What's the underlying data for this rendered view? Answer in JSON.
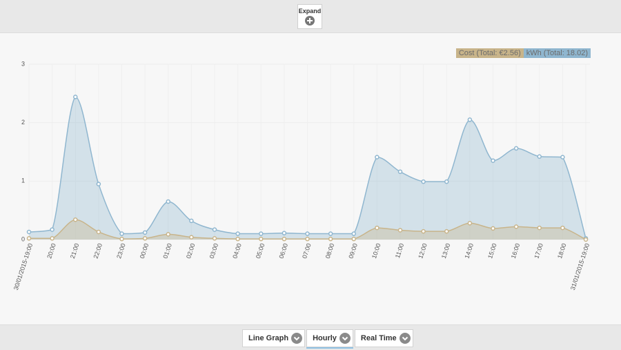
{
  "expand_button": "Expand",
  "chart_data": {
    "type": "area",
    "categories": [
      "30/01/2015-19:00",
      "20:00",
      "21:00",
      "22:00",
      "23:00",
      "00:00",
      "01:00",
      "02:00",
      "03:00",
      "04:00",
      "05:00",
      "06:00",
      "07:00",
      "08:00",
      "09:00",
      "10:00",
      "11:00",
      "12:00",
      "13:00",
      "14:00",
      "15:00",
      "16:00",
      "17:00",
      "18:00",
      "31/01/2015-19:00"
    ],
    "series": [
      {
        "name": "Cost (Total: €2.56)",
        "color": "#c8b48a",
        "values": [
          0.02,
          0.02,
          0.34,
          0.13,
          0.01,
          0.02,
          0.09,
          0.04,
          0.02,
          0.01,
          0.01,
          0.01,
          0.01,
          0.01,
          0.01,
          0.2,
          0.16,
          0.14,
          0.14,
          0.28,
          0.19,
          0.22,
          0.2,
          0.2,
          0
        ]
      },
      {
        "name": "kWh (Total: 18.02)",
        "color": "#8fb6cf",
        "values": [
          0.13,
          0.17,
          2.44,
          0.95,
          0.1,
          0.12,
          0.65,
          0.32,
          0.17,
          0.1,
          0.1,
          0.11,
          0.1,
          0.1,
          0.1,
          1.41,
          1.16,
          0.99,
          0.99,
          2.05,
          1.35,
          1.56,
          1.42,
          1.41,
          0.02
        ]
      }
    ],
    "ylim": [
      0,
      3
    ],
    "yticks": [
      0,
      1,
      2,
      3
    ],
    "grid": true
  },
  "controls": [
    "Line Graph",
    "Hourly",
    "Real Time"
  ]
}
